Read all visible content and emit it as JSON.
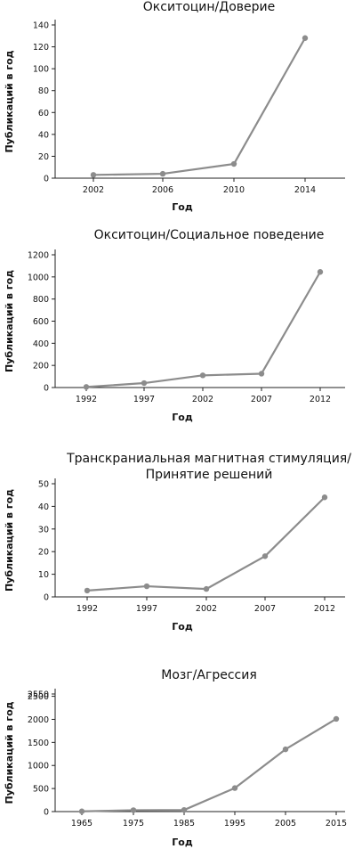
{
  "colors": {
    "series": "#8c8c8c",
    "axis": "#222222",
    "text": "#111111"
  },
  "chart_data": [
    {
      "type": "line",
      "title": "Окситоцин/Доверие",
      "xlabel": "Год",
      "ylabel": "Публикаций в год",
      "categories": [
        "2002",
        "2006",
        "2010",
        "2014"
      ],
      "values": [
        3,
        4,
        13,
        128
      ],
      "ylim": [
        0,
        140
      ],
      "yticks": [
        0,
        20,
        40,
        60,
        80,
        100,
        120,
        140
      ],
      "grid": false
    },
    {
      "type": "line",
      "title": "Окситоцин/Социальное поведение",
      "xlabel": "Год",
      "ylabel": "Публикаций в год",
      "categories": [
        "1992",
        "1997",
        "2002",
        "2007",
        "2012"
      ],
      "values": [
        5,
        40,
        110,
        125,
        1045
      ],
      "ylim": [
        0,
        1200
      ],
      "yticks": [
        0,
        200,
        400,
        600,
        800,
        1000,
        1200
      ],
      "grid": false
    },
    {
      "type": "line",
      "title": "Транскраниальная магнитная стимуляция/ Принятие решений",
      "title_lines": [
        "Транскраниальная магнитная стимуляция/",
        "Принятие решений"
      ],
      "xlabel": "Год",
      "ylabel": "Публикаций в год",
      "categories": [
        "1992",
        "1997",
        "2002",
        "2007",
        "2012"
      ],
      "values": [
        2.8,
        4.7,
        3.5,
        18,
        44
      ],
      "ylim": [
        0,
        50
      ],
      "yticks": [
        0,
        10,
        20,
        30,
        40,
        50
      ],
      "grid": false
    },
    {
      "type": "line",
      "title": "Мозг/Агрессия",
      "xlabel": "Год",
      "ylabel": "Публикаций в год",
      "categories": [
        "1965",
        "1975",
        "1985",
        "1995",
        "2005",
        "2015"
      ],
      "values": [
        5,
        30,
        35,
        510,
        1350,
        2010
      ],
      "ylim": [
        0,
        2550
      ],
      "yticks": [
        0,
        500,
        1000,
        1500,
        2000,
        2500,
        2550
      ],
      "grid": false
    }
  ]
}
